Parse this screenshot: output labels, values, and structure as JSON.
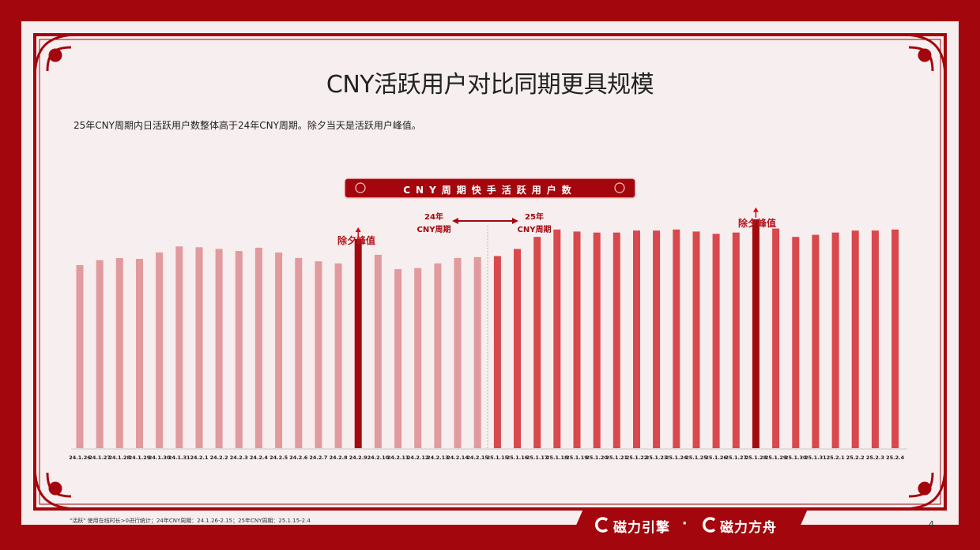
{
  "slide": {
    "title": "CNY活跃用户对比同期更具规模",
    "subtitle": "25年CNY周期内日活跃用户数整体高于24年CNY周期。除夕当天是活跃用户峰值。",
    "footnote": "\"活跃\" 使用在线时长>0进行统计；24年CNY周期：24.1.26-2.15；25年CNY周期：25.1.15-2.4",
    "page_number": "4",
    "brand_left": "磁力引擎",
    "brand_separator": "·",
    "brand_right": "磁力方舟"
  },
  "colors": {
    "background_frame": "#a3070d",
    "panel": "#f6eeef",
    "bar_2024": "#e19a9d",
    "bar_2025": "#d8484c",
    "bar_peak": "#a30a0f",
    "label_red": "#b2161c"
  },
  "annotations": {
    "period_2024_line1": "24年",
    "period_2024_line2": "CNY周期",
    "period_2025_line1": "25年",
    "period_2025_line2": "CNY周期",
    "peak_2024": "除夕峰值",
    "peak_2025": "除夕峰值"
  },
  "chart_data": {
    "type": "bar",
    "title": "CNY周期快手活跃用户数",
    "xlabel": "",
    "ylabel": "",
    "ylim": [
      0,
      100
    ],
    "grid": false,
    "categories": [
      "24.1.26",
      "24.1.27",
      "24.1.28",
      "24.1.29",
      "24.1.30",
      "24.1.31",
      "24.2.1",
      "24.2.2",
      "24.2.3",
      "24.2.4",
      "24.2.5",
      "24.2.6",
      "24.2.7",
      "24.2.8",
      "24.2.9",
      "24.2.10",
      "24.2.11",
      "24.2.12",
      "24.2.13",
      "24.2.14",
      "24.2.15",
      "25.1.15",
      "25.1.16",
      "25.1.17",
      "25.1.18",
      "25.1.19",
      "25.1.20",
      "25.1.21",
      "25.1.22",
      "25.1.23",
      "25.1.24",
      "25.1.25",
      "25.1.26",
      "25.1.27",
      "25.1.28",
      "25.1.29",
      "25.1.30",
      "25.1.31",
      "25.2.1",
      "25.2.2",
      "25.2.3",
      "25.2.4"
    ],
    "series": [
      {
        "values": [
          72.5,
          74.5,
          75.3,
          75,
          77.5,
          79.9,
          79.6,
          78.9,
          78.1,
          79.4,
          77.5,
          75.3,
          74,
          73.2,
          82.8,
          76.6,
          70.9,
          71.3,
          73.2,
          75.3,
          75.7,
          76.1,
          78.9,
          83.7,
          86.6,
          85.8,
          85.4,
          85.4,
          86.2,
          86.2,
          86.6,
          85.8,
          84.9,
          85.4,
          90.7,
          87,
          83.7,
          84.5,
          85.4,
          86.2,
          86.2,
          86.6
        ]
      }
    ],
    "periods": [
      {
        "from": "24.1.26",
        "to": "24.2.15",
        "peak": "24.2.9"
      },
      {
        "from": "25.1.15",
        "to": "25.2.4",
        "peak": "25.1.28"
      }
    ]
  }
}
